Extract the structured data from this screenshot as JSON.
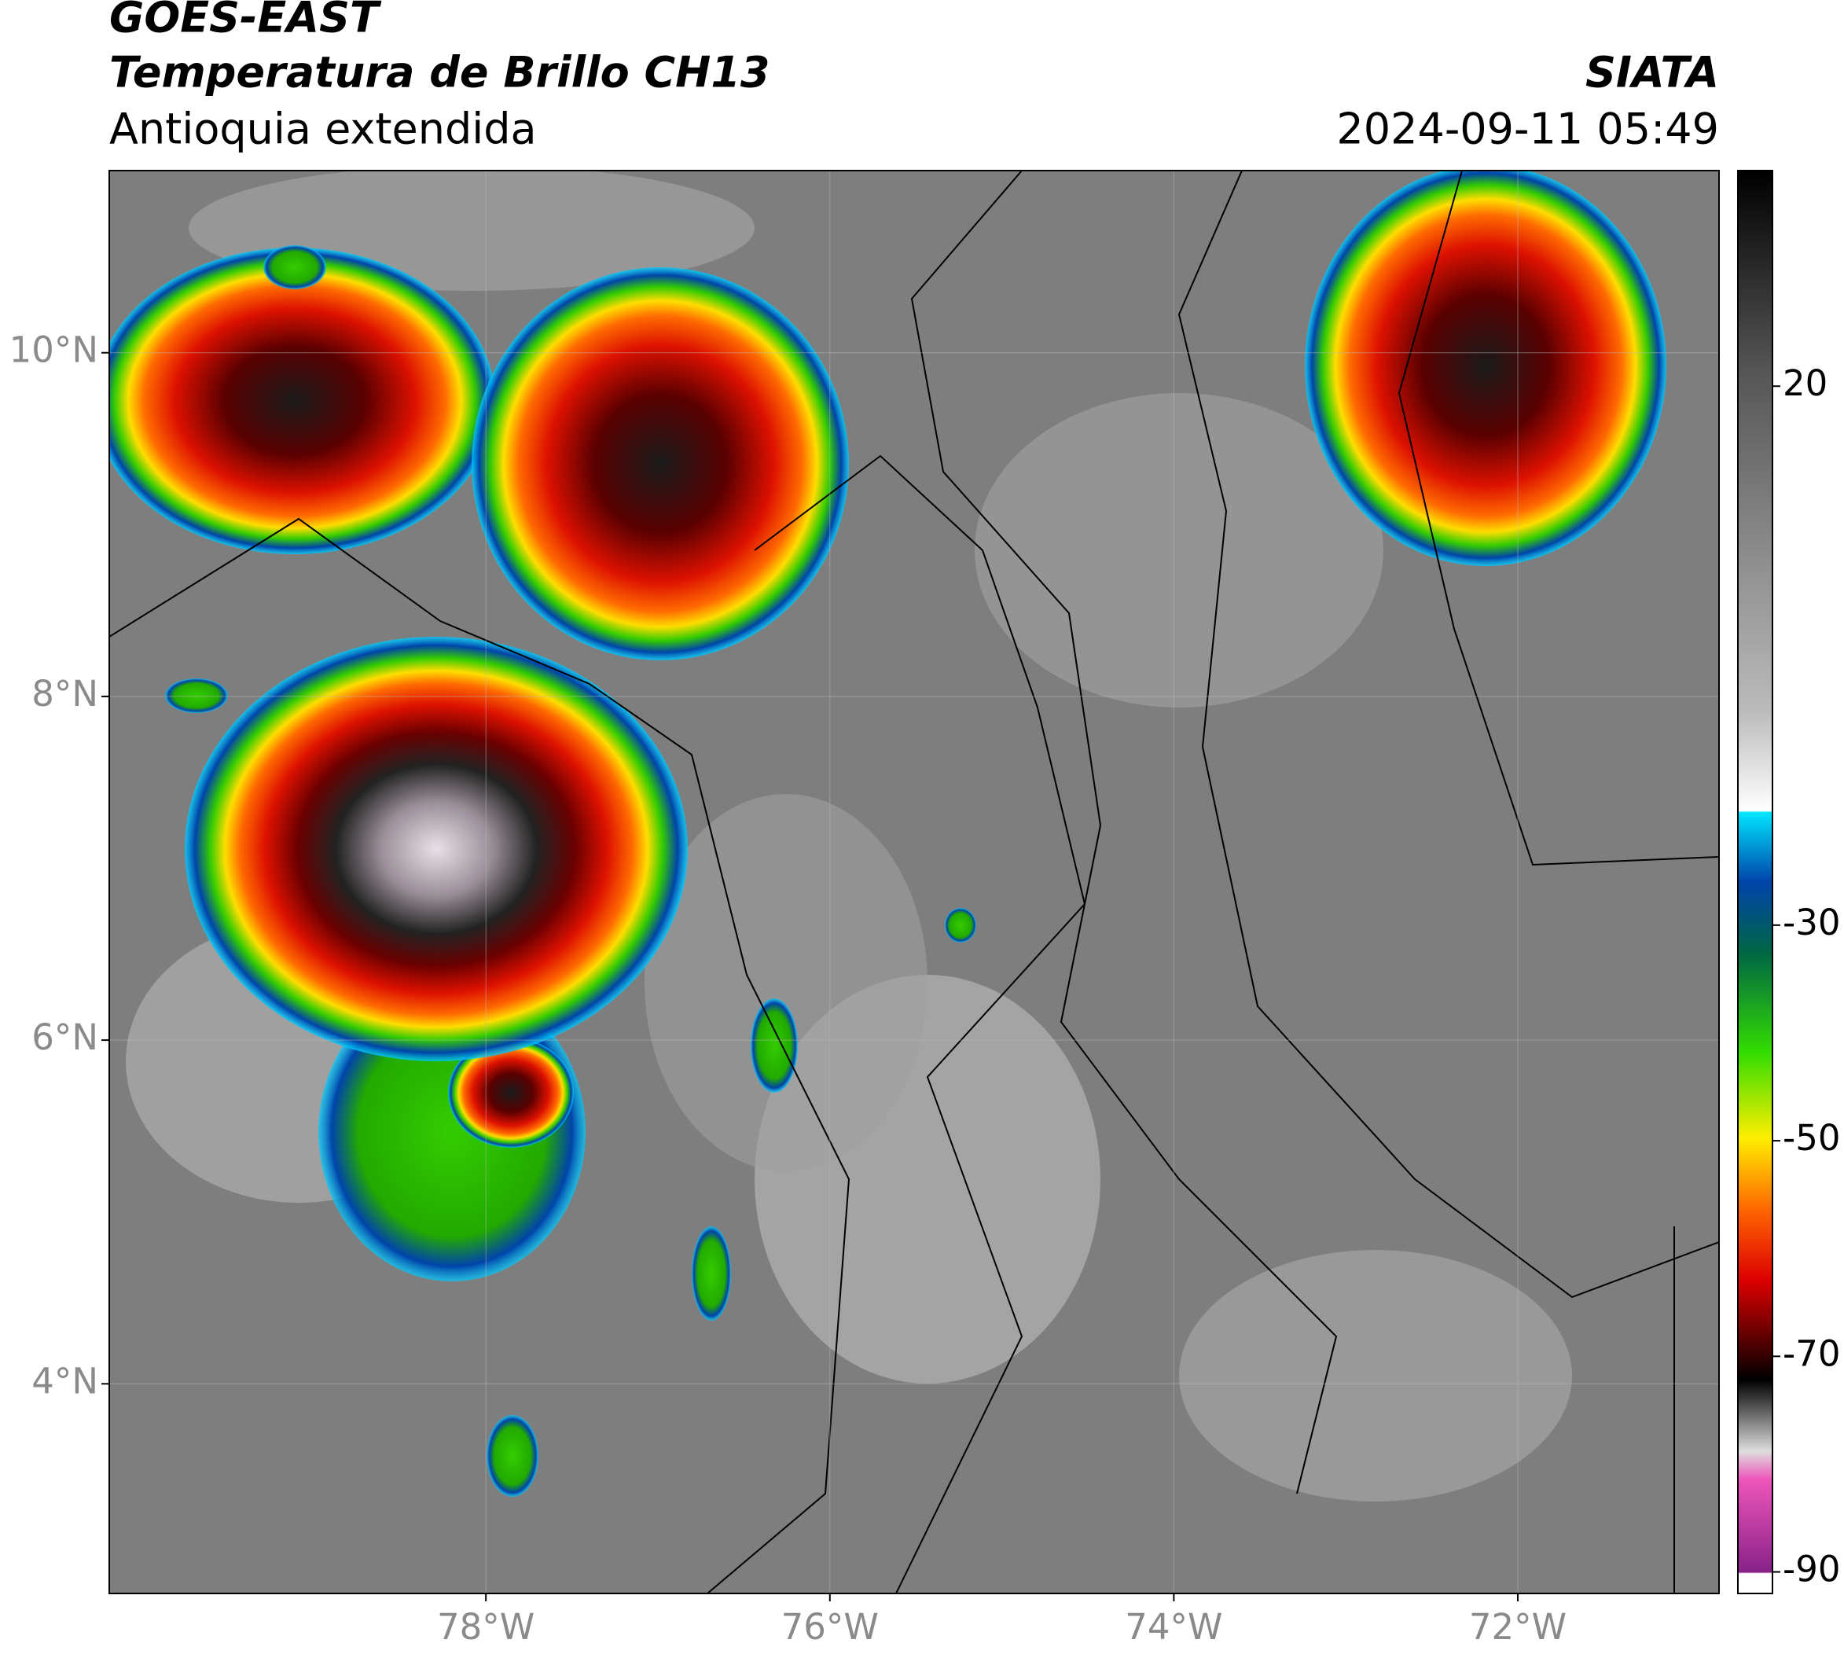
{
  "header": {
    "title": "GOES-EAST",
    "subtitle": "Temperatura de Brillo CH13",
    "region": "Antioquia extendida",
    "source": "SIATA",
    "datetime": "2024-09-11 05:49"
  },
  "map": {
    "lat_range": [
      2.78,
      11.06
    ],
    "lon_range": [
      -80.19,
      -70.83
    ],
    "lat_ticks": [
      {
        "value": 10,
        "label": "10°N"
      },
      {
        "value": 8,
        "label": "8°N"
      },
      {
        "value": 6,
        "label": "6°N"
      },
      {
        "value": 4,
        "label": "4°N"
      }
    ],
    "lon_ticks": [
      {
        "value": -78,
        "label": "78°W"
      },
      {
        "value": -76,
        "label": "76°W"
      },
      {
        "value": -74,
        "label": "74°W"
      },
      {
        "value": -72,
        "label": "72°W"
      }
    ]
  },
  "colorbar": {
    "range": [
      -92,
      40
    ],
    "ticks": [
      20,
      -30,
      -50,
      -70,
      -90
    ]
  }
}
